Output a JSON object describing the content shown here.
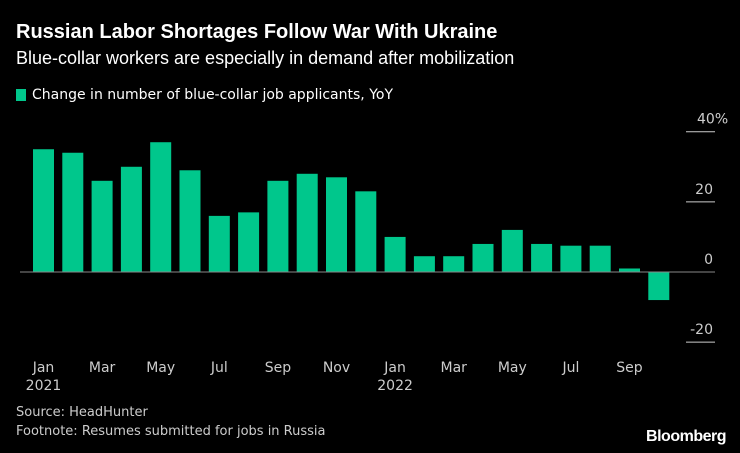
{
  "title": "Russian Labor Shortages Follow War With Ukraine",
  "subtitle": "Blue-collar workers are especially in demand after mobilization",
  "source": "Source: HeadHunter",
  "footnote": "Footnote: Resumes submitted for jobs in Russia",
  "logo": "Bloomberg",
  "colors": {
    "bar": "#00c78c",
    "background": "#000000"
  },
  "chart_data": {
    "type": "bar",
    "title": "Russian Labor Shortages Follow War With Ukraine",
    "legend_position": "top-left",
    "series": [
      {
        "name": "Change in number of blue-collar job applicants, YoY",
        "values": [
          35,
          34,
          26,
          30,
          37,
          29,
          16,
          17,
          26,
          28,
          27,
          23,
          10,
          4.5,
          4.5,
          8,
          12,
          8,
          7.5,
          7.5,
          1,
          -8
        ]
      }
    ],
    "categories": [
      "Jan 2021",
      "Feb 2021",
      "Mar 2021",
      "Apr 2021",
      "May 2021",
      "Jun 2021",
      "Jul 2021",
      "Aug 2021",
      "Sep 2021",
      "Oct 2021",
      "Nov 2021",
      "Dec 2021",
      "Jan 2022",
      "Feb 2022",
      "Mar 2022",
      "Apr 2022",
      "May 2022",
      "Jun 2022",
      "Jul 2022",
      "Aug 2022",
      "Sep 2022",
      "Oct 2022"
    ],
    "x_tick_labels": [
      {
        "index": 0,
        "label": "Jan",
        "sub": "2021"
      },
      {
        "index": 2,
        "label": "Mar"
      },
      {
        "index": 4,
        "label": "May"
      },
      {
        "index": 6,
        "label": "Jul"
      },
      {
        "index": 8,
        "label": "Sep"
      },
      {
        "index": 10,
        "label": "Nov"
      },
      {
        "index": 12,
        "label": "Jan",
        "sub": "2022"
      },
      {
        "index": 14,
        "label": "Mar"
      },
      {
        "index": 16,
        "label": "May"
      },
      {
        "index": 18,
        "label": "Jul"
      },
      {
        "index": 20,
        "label": "Sep"
      }
    ],
    "y_ticks": [
      {
        "value": 40,
        "label": "40%"
      },
      {
        "value": 20,
        "label": "20"
      },
      {
        "value": 0,
        "label": "0"
      },
      {
        "value": -20,
        "label": "-20"
      }
    ],
    "ylim": [
      -20,
      40
    ],
    "y_axis_position": "right",
    "grid": false
  }
}
